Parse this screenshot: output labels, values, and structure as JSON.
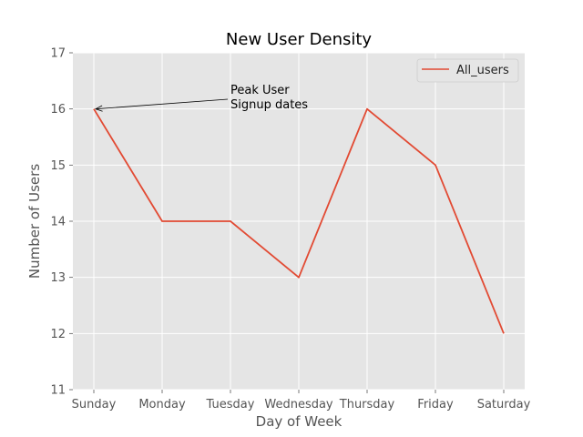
{
  "chart_data": {
    "type": "line",
    "title": "New User Density",
    "xlabel": "Day of Week",
    "ylabel": "Number of Users",
    "categories": [
      "Sunday",
      "Monday",
      "Tuesday",
      "Wednesday",
      "Thursday",
      "Friday",
      "Saturday"
    ],
    "series": [
      {
        "name": "All_users",
        "values": [
          16,
          14,
          14,
          13,
          16,
          15,
          12
        ],
        "color": "#E24A33"
      }
    ],
    "ylim": [
      11,
      17
    ],
    "yticks": [
      11,
      12,
      13,
      14,
      15,
      16,
      17
    ],
    "grid": true,
    "legend_position": "top-right",
    "annotation": {
      "lines": [
        "Peak User",
        "Signup dates"
      ],
      "target_category": "Sunday",
      "target_value": 16
    }
  },
  "style": {
    "plot_bg": "#E5E5E5",
    "grid_color": "#FFFFFF",
    "text_color": "#555555"
  }
}
